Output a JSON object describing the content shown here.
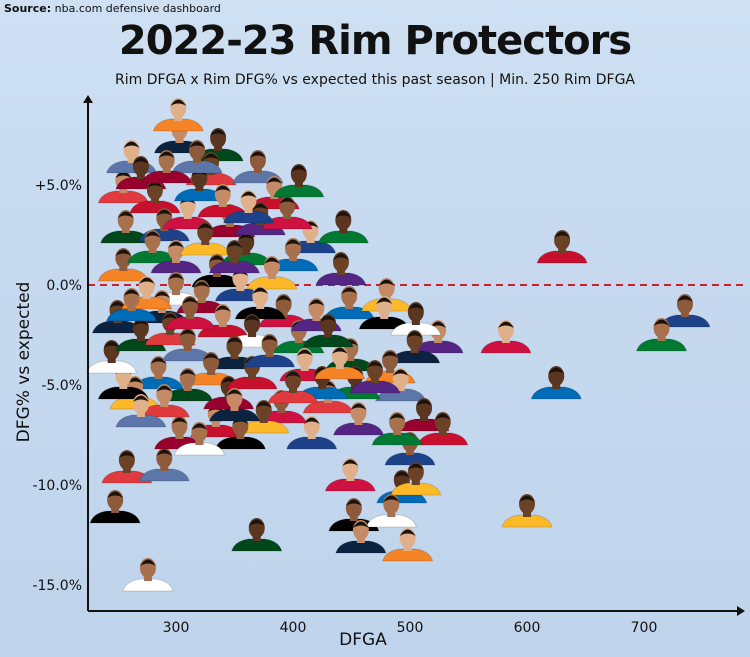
{
  "source_label": "Source:",
  "source_text": "nba.com defensive dashboard",
  "title": "2022-23 Rim Protectors",
  "subtitle": "Rim DFGA x Rim DFG% vs expected this past season | Min. 250 Rim DFGA",
  "colors": {
    "axis": "#111111",
    "reference_line": "#cc1f2f",
    "background": "#c8dbef",
    "skin_tones": [
      "#6b4226",
      "#8d5a3b",
      "#a8714d",
      "#c48b66",
      "#e0b08a",
      "#5a3520"
    ],
    "jersey_colors": [
      "#c8102e",
      "#1d428a",
      "#007a33",
      "#552583",
      "#ce1141",
      "#006bb6",
      "#fdb927",
      "#000000",
      "#ffffff",
      "#0c2340",
      "#f58426",
      "#00471b",
      "#e03a3e",
      "#5d76a9",
      "#98002e"
    ]
  },
  "chart_data": {
    "type": "scatter",
    "title": "2022-23 Rim Protectors",
    "xlabel": "DFGA",
    "ylabel": "DFG% vs expected",
    "xlim": [
      230,
      780
    ],
    "ylim": [
      -16.3,
      9.3
    ],
    "xticks": [
      300,
      400,
      500,
      600,
      700
    ],
    "yticks": [
      5,
      0,
      -5,
      -10,
      -15
    ],
    "ytick_labels": [
      "+5.0%",
      "0.0%",
      "-5.0%",
      "-10.0%",
      "-15.0%"
    ],
    "xtick_labels": [
      "300",
      "400",
      "500",
      "600",
      "700"
    ],
    "reference_line": {
      "y": 0,
      "style": "dashed"
    },
    "marker": "player headshot",
    "points": [
      {
        "x": 630,
        "y": 1.5
      },
      {
        "x": 735,
        "y": -1.7
      },
      {
        "x": 715,
        "y": -2.9
      },
      {
        "x": 524,
        "y": -3.0
      },
      {
        "x": 582,
        "y": -3.0
      },
      {
        "x": 625,
        "y": -5.3
      },
      {
        "x": 600,
        "y": -11.7
      },
      {
        "x": 248,
        "y": -11.5
      },
      {
        "x": 276,
        "y": -14.9
      },
      {
        "x": 303,
        "y": 7.0
      },
      {
        "x": 302,
        "y": 8.1
      },
      {
        "x": 336,
        "y": 6.6
      },
      {
        "x": 330,
        "y": 5.4
      },
      {
        "x": 370,
        "y": 5.5
      },
      {
        "x": 346,
        "y": 2.8
      },
      {
        "x": 384,
        "y": 4.2
      },
      {
        "x": 415,
        "y": 2.0
      },
      {
        "x": 443,
        "y": 2.5
      },
      {
        "x": 441,
        "y": 0.4
      },
      {
        "x": 392,
        "y": -1.7
      },
      {
        "x": 448,
        "y": -1.3
      },
      {
        "x": 480,
        "y": -0.9
      },
      {
        "x": 478,
        "y": -1.8
      },
      {
        "x": 505,
        "y": -2.1
      },
      {
        "x": 504,
        "y": -3.5
      },
      {
        "x": 483,
        "y": -4.5
      },
      {
        "x": 449,
        "y": -3.9
      },
      {
        "x": 430,
        "y": -6.0
      },
      {
        "x": 492,
        "y": -5.4
      },
      {
        "x": 512,
        "y": -6.9
      },
      {
        "x": 528,
        "y": -7.6
      },
      {
        "x": 500,
        "y": -8.6
      },
      {
        "x": 489,
        "y": -7.6
      },
      {
        "x": 456,
        "y": -7.1
      },
      {
        "x": 449,
        "y": -9.9
      },
      {
        "x": 493,
        "y": -10.5
      },
      {
        "x": 505,
        "y": -10.1
      },
      {
        "x": 452,
        "y": -11.9
      },
      {
        "x": 484,
        "y": -11.7
      },
      {
        "x": 458,
        "y": -13.0
      },
      {
        "x": 498,
        "y": -13.4
      },
      {
        "x": 369,
        "y": -12.9
      },
      {
        "x": 258,
        "y": -9.5
      },
      {
        "x": 290,
        "y": -9.4
      },
      {
        "x": 303,
        "y": -7.8
      },
      {
        "x": 334,
        "y": -7.2
      },
      {
        "x": 416,
        "y": -7.8
      },
      {
        "x": 453,
        "y": -5.3
      },
      {
        "x": 470,
        "y": -5.0
      },
      {
        "x": 390,
        "y": -6.5
      },
      {
        "x": 285,
        "y": -4.8
      },
      {
        "x": 265,
        "y": -5.8
      },
      {
        "x": 255,
        "y": -5.3
      },
      {
        "x": 245,
        "y": -4.0
      },
      {
        "x": 250,
        "y": -2.0
      },
      {
        "x": 255,
        "y": 0.6
      },
      {
        "x": 257,
        "y": 2.5
      },
      {
        "x": 255,
        "y": 4.5
      },
      {
        "x": 262,
        "y": 6.0
      },
      {
        "x": 270,
        "y": 5.2
      },
      {
        "x": 282,
        "y": 4.0
      },
      {
        "x": 290,
        "y": 2.6
      },
      {
        "x": 280,
        "y": 1.5
      },
      {
        "x": 300,
        "y": 1.0
      },
      {
        "x": 310,
        "y": 3.2
      },
      {
        "x": 320,
        "y": 4.6
      },
      {
        "x": 325,
        "y": 1.9
      },
      {
        "x": 335,
        "y": 0.3
      },
      {
        "x": 300,
        "y": -0.6
      },
      {
        "x": 288,
        "y": -1.5
      },
      {
        "x": 275,
        "y": -0.8
      },
      {
        "x": 270,
        "y": -2.9
      },
      {
        "x": 295,
        "y": -2.6
      },
      {
        "x": 310,
        "y": -3.4
      },
      {
        "x": 322,
        "y": -1.0
      },
      {
        "x": 340,
        "y": -2.2
      },
      {
        "x": 355,
        "y": -0.4
      },
      {
        "x": 360,
        "y": 1.4
      },
      {
        "x": 372,
        "y": 2.9
      },
      {
        "x": 395,
        "y": 3.2
      },
      {
        "x": 400,
        "y": 1.1
      },
      {
        "x": 382,
        "y": 0.2
      },
      {
        "x": 372,
        "y": -1.3
      },
      {
        "x": 365,
        "y": -2.7
      },
      {
        "x": 350,
        "y": -3.8
      },
      {
        "x": 330,
        "y": -4.6
      },
      {
        "x": 310,
        "y": -5.4
      },
      {
        "x": 290,
        "y": -6.2
      },
      {
        "x": 270,
        "y": -6.7
      },
      {
        "x": 345,
        "y": -5.8
      },
      {
        "x": 365,
        "y": -4.8
      },
      {
        "x": 380,
        "y": -3.7
      },
      {
        "x": 405,
        "y": -3.0
      },
      {
        "x": 420,
        "y": -1.9
      },
      {
        "x": 410,
        "y": -4.4
      },
      {
        "x": 425,
        "y": -5.3
      },
      {
        "x": 375,
        "y": -7.0
      },
      {
        "x": 355,
        "y": -7.8
      },
      {
        "x": 320,
        "y": -8.1
      },
      {
        "x": 350,
        "y": -6.4
      },
      {
        "x": 440,
        "y": -4.3
      },
      {
        "x": 430,
        "y": -2.7
      },
      {
        "x": 400,
        "y": -5.5
      },
      {
        "x": 318,
        "y": 6.0
      },
      {
        "x": 292,
        "y": 5.5
      },
      {
        "x": 340,
        "y": 3.8
      },
      {
        "x": 362,
        "y": 3.5
      },
      {
        "x": 405,
        "y": 4.8
      },
      {
        "x": 350,
        "y": 1.0
      },
      {
        "x": 312,
        "y": -1.8
      },
      {
        "x": 262,
        "y": -1.4
      }
    ]
  }
}
